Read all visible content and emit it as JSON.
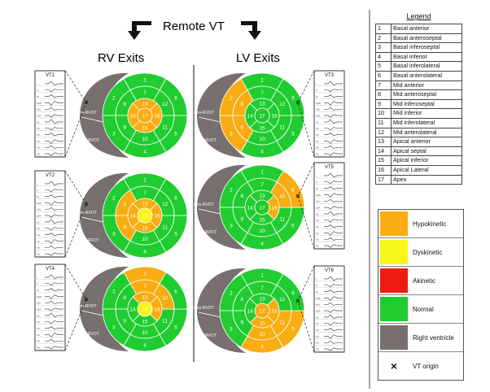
{
  "header": {
    "title": "Remote VT",
    "left_heading": "RV Exits",
    "right_heading": "LV Exits"
  },
  "colors": {
    "hypokinetic": "#f9ad12",
    "dyskinetic": "#f6f61a",
    "akinetic": "#ef1c16",
    "normal": "#20cc30",
    "right_ventricle": "#77706f"
  },
  "rv_labels": {
    "non_rvot": "Non-RVOT",
    "rvot": "RVOT"
  },
  "panels": [
    {
      "id": "vt1",
      "ecg_title": "VT1",
      "side": "left",
      "segments": {
        "13": "hypokinetic",
        "14": "hypokinetic",
        "15": "hypokinetic",
        "16": "hypokinetic",
        "17": "hypokinetic"
      }
    },
    {
      "id": "vt2",
      "ecg_title": "VT2",
      "side": "left",
      "segments": {
        "8": "hypokinetic",
        "9": "hypokinetic",
        "13": "hypokinetic",
        "14": "hypokinetic",
        "15": "hypokinetic",
        "16": "hypokinetic",
        "17": "dyskinetic"
      }
    },
    {
      "id": "vt4",
      "ecg_title": "VT4",
      "side": "left",
      "segments": {
        "1": "hypokinetic",
        "7": "hypokinetic",
        "12": "hypokinetic",
        "13": "hypokinetic",
        "16": "hypokinetic",
        "17": "dyskinetic"
      }
    },
    {
      "id": "vt3",
      "ecg_title": "VT3",
      "side": "right",
      "segments": {
        "2": "hypokinetic",
        "3": "hypokinetic",
        "8": "hypokinetic",
        "9": "hypokinetic"
      }
    },
    {
      "id": "vt5",
      "ecg_title": "VT5",
      "side": "right",
      "segments": {
        "6": "hypokinetic",
        "12": "hypokinetic",
        "16": "hypokinetic"
      }
    },
    {
      "id": "vt6",
      "ecg_title": "VT6",
      "side": "right",
      "segments": {
        "4": "hypokinetic",
        "5": "hypokinetic",
        "10": "hypokinetic",
        "11": "hypokinetic",
        "15": "hypokinetic",
        "16": "hypokinetic",
        "17": "hypokinetic"
      }
    }
  ],
  "ecg_leads": [
    "I",
    "II",
    "III",
    "aVR",
    "aVL",
    "aVF",
    "V1",
    "V2",
    "V3",
    "V4",
    "V5",
    "V6"
  ],
  "legend": {
    "title": "Legend",
    "segments": [
      {
        "n": "1",
        "name": "Basal anterior"
      },
      {
        "n": "2",
        "name": "Basal anteroseptal"
      },
      {
        "n": "3",
        "name": "Basal inferoseptal"
      },
      {
        "n": "4",
        "name": "Basal inferior"
      },
      {
        "n": "5",
        "name": "Basal inferolateral"
      },
      {
        "n": "6",
        "name": "Basal anterolateral"
      },
      {
        "n": "7",
        "name": "Mid anterior"
      },
      {
        "n": "8",
        "name": "Mid anteroseptal"
      },
      {
        "n": "9",
        "name": "Mid inferoseptal"
      },
      {
        "n": "10",
        "name": "Mid inferior"
      },
      {
        "n": "11",
        "name": "Mid inferolateral"
      },
      {
        "n": "12",
        "name": "Mid anterolateral"
      },
      {
        "n": "13",
        "name": "Apical anterior"
      },
      {
        "n": "14",
        "name": "Apical septal"
      },
      {
        "n": "15",
        "name": "Apical inferior"
      },
      {
        "n": "16",
        "name": "Apical Lateral"
      },
      {
        "n": "17",
        "name": "Apex"
      }
    ],
    "colors": [
      {
        "label": "Hypokinetic",
        "color": "#f9ad12"
      },
      {
        "label": "Dyskinetic",
        "color": "#f6f61a"
      },
      {
        "label": "Akinetic",
        "color": "#ef1c16"
      },
      {
        "label": "Normal",
        "color": "#20cc30"
      },
      {
        "label": "Right ventricle",
        "color": "#77706f"
      }
    ],
    "vt_origin": {
      "label": "VT origin",
      "symbol": "×"
    }
  }
}
